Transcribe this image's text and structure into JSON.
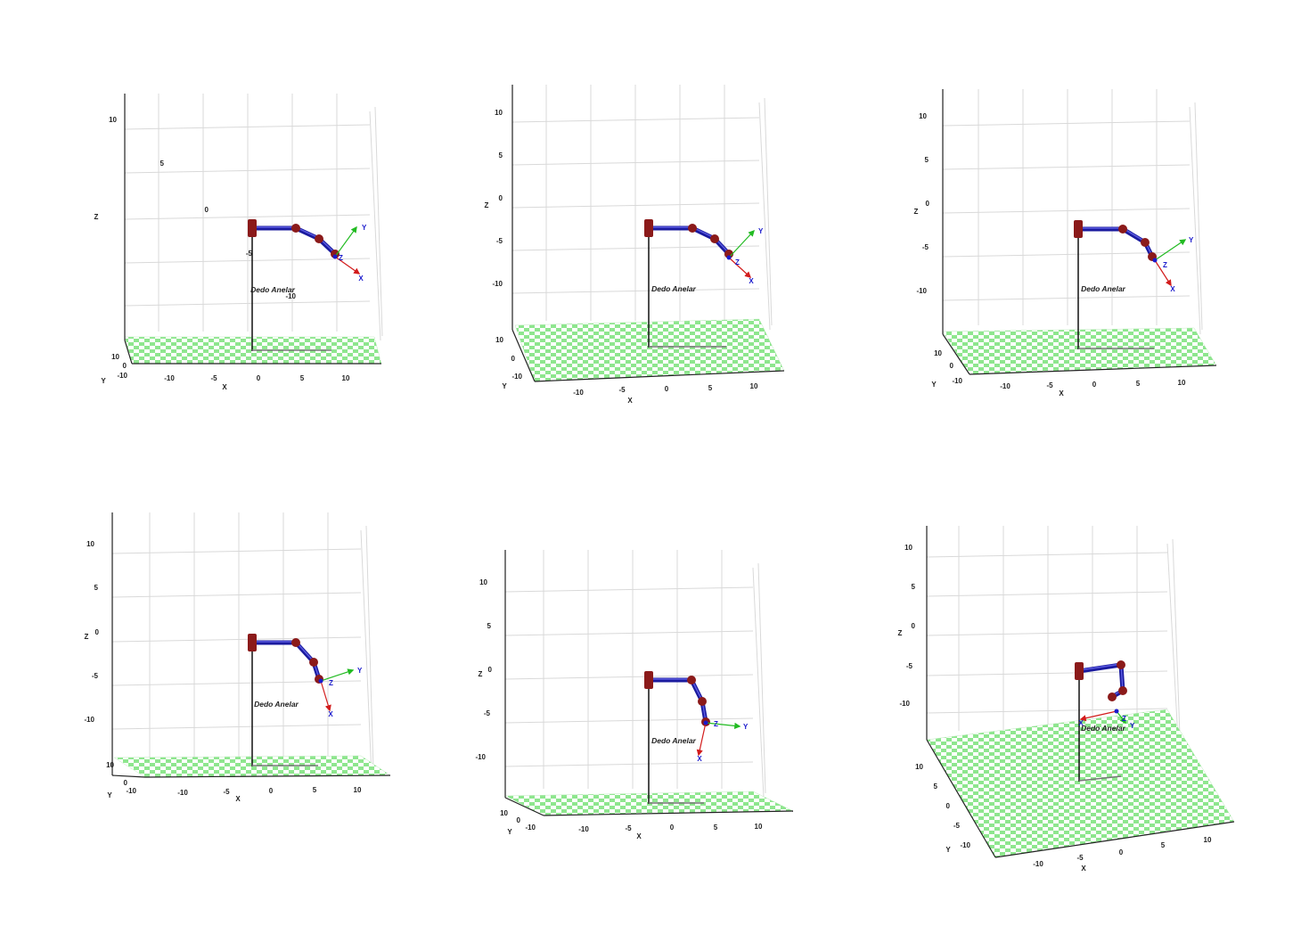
{
  "plots": [
    {
      "robot_label": "Dedo Anelar",
      "axis_names": {
        "x": "X",
        "y": "Y",
        "z": "Z"
      },
      "z_ticks": [
        "10",
        "5",
        "0",
        "-5",
        "-10"
      ],
      "x_ticks": [
        "-10",
        "-5",
        "0",
        "5",
        "10"
      ],
      "y_ticks": [
        "10",
        "0",
        "-10"
      ],
      "frame_labels": {
        "x": "X",
        "y": "Y",
        "z": "Z"
      }
    },
    {
      "robot_label": "Dedo Anelar",
      "axis_names": {
        "x": "X",
        "y": "Y",
        "z": "Z"
      },
      "z_ticks": [
        "10",
        "5",
        "0",
        "-5",
        "-10"
      ],
      "x_ticks": [
        "-10",
        "-5",
        "0",
        "5",
        "10"
      ],
      "y_ticks": [
        "10",
        "0",
        "-10"
      ],
      "frame_labels": {
        "x": "X",
        "y": "Y",
        "z": "Z"
      }
    },
    {
      "robot_label": "Dedo Anelar",
      "axis_names": {
        "x": "X",
        "y": "Y",
        "z": "Z"
      },
      "z_ticks": [
        "10",
        "5",
        "0",
        "-5",
        "-10"
      ],
      "x_ticks": [
        "-10",
        "-5",
        "0",
        "5",
        "10"
      ],
      "y_ticks": [
        "10",
        "0",
        "-10"
      ],
      "frame_labels": {
        "x": "X",
        "y": "Y",
        "z": "Z"
      }
    },
    {
      "robot_label": "Dedo Anelar",
      "axis_names": {
        "x": "X",
        "y": "Y",
        "z": "Z"
      },
      "z_ticks": [
        "10",
        "5",
        "0",
        "-5",
        "-10"
      ],
      "x_ticks": [
        "-10",
        "-5",
        "0",
        "5",
        "10"
      ],
      "y_ticks": [
        "10",
        "0",
        "-10"
      ],
      "frame_labels": {
        "x": "X",
        "y": "Y",
        "z": "Z"
      }
    },
    {
      "robot_label": "Dedo Anelar",
      "axis_names": {
        "x": "X",
        "y": "Y",
        "z": "Z"
      },
      "z_ticks": [
        "10",
        "5",
        "0",
        "-5",
        "-10"
      ],
      "x_ticks": [
        "-10",
        "-5",
        "0",
        "5",
        "10"
      ],
      "y_ticks": [
        "10",
        "0",
        "-10"
      ],
      "frame_labels": {
        "x": "X",
        "y": "Y",
        "z": "Z"
      }
    },
    {
      "robot_label": "Dedo Anelar",
      "axis_names": {
        "x": "X",
        "y": "Y",
        "z": "Z"
      },
      "z_ticks": [
        "10",
        "5",
        "0",
        "-5",
        "-10"
      ],
      "x_ticks": [
        "-10",
        "-5",
        "0",
        "5",
        "10"
      ],
      "y_ticks": [
        "10",
        "5",
        "0",
        "-5",
        "-10"
      ],
      "frame_labels": {
        "x": "X",
        "y": "Y",
        "z": "Z"
      }
    }
  ],
  "colors": {
    "floor_light": "#ffffff",
    "floor_dark": "#8ee68e",
    "link": "#1a1a9e",
    "joint": "#8b1a1a",
    "frame_x": "#d21c1c",
    "frame_y": "#22bb22",
    "frame_z": "#1a1acc",
    "frame_label": "#1a1acc",
    "grid": "#d9d9d9"
  }
}
